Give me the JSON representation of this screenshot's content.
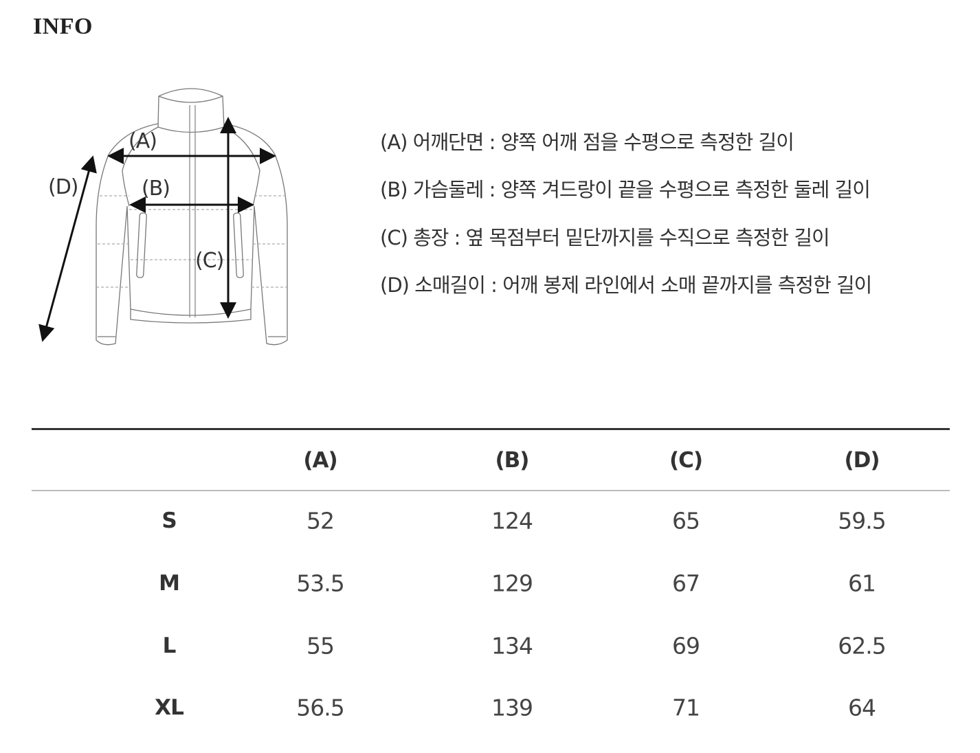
{
  "title": "INFO",
  "diagram": {
    "labels": {
      "a": "(A)",
      "b": "(B)",
      "c": "(C)",
      "d": "(D)"
    }
  },
  "descriptions": [
    "(A) 어깨단면 : 양쪽 어깨 점을 수평으로 측정한 길이",
    "(B) 가슴둘레 : 양쪽 겨드랑이 끝을 수평으로 측정한 둘레 길이",
    "(C) 총장 : 옆 목점부터 밑단까지를 수직으로 측정한 길이",
    "(D) 소매길이 : 어깨 봉제 라인에서 소매 끝까지를 측정한 길이"
  ],
  "table": {
    "headers": [
      "",
      "(A)",
      "(B)",
      "(C)",
      "(D)"
    ],
    "rows": [
      [
        "S",
        "52",
        "124",
        "65",
        "59.5"
      ],
      [
        "M",
        "53.5",
        "129",
        "67",
        "61"
      ],
      [
        "L",
        "55",
        "134",
        "69",
        "62.5"
      ],
      [
        "XL",
        "56.5",
        "139",
        "71",
        "64"
      ]
    ]
  }
}
